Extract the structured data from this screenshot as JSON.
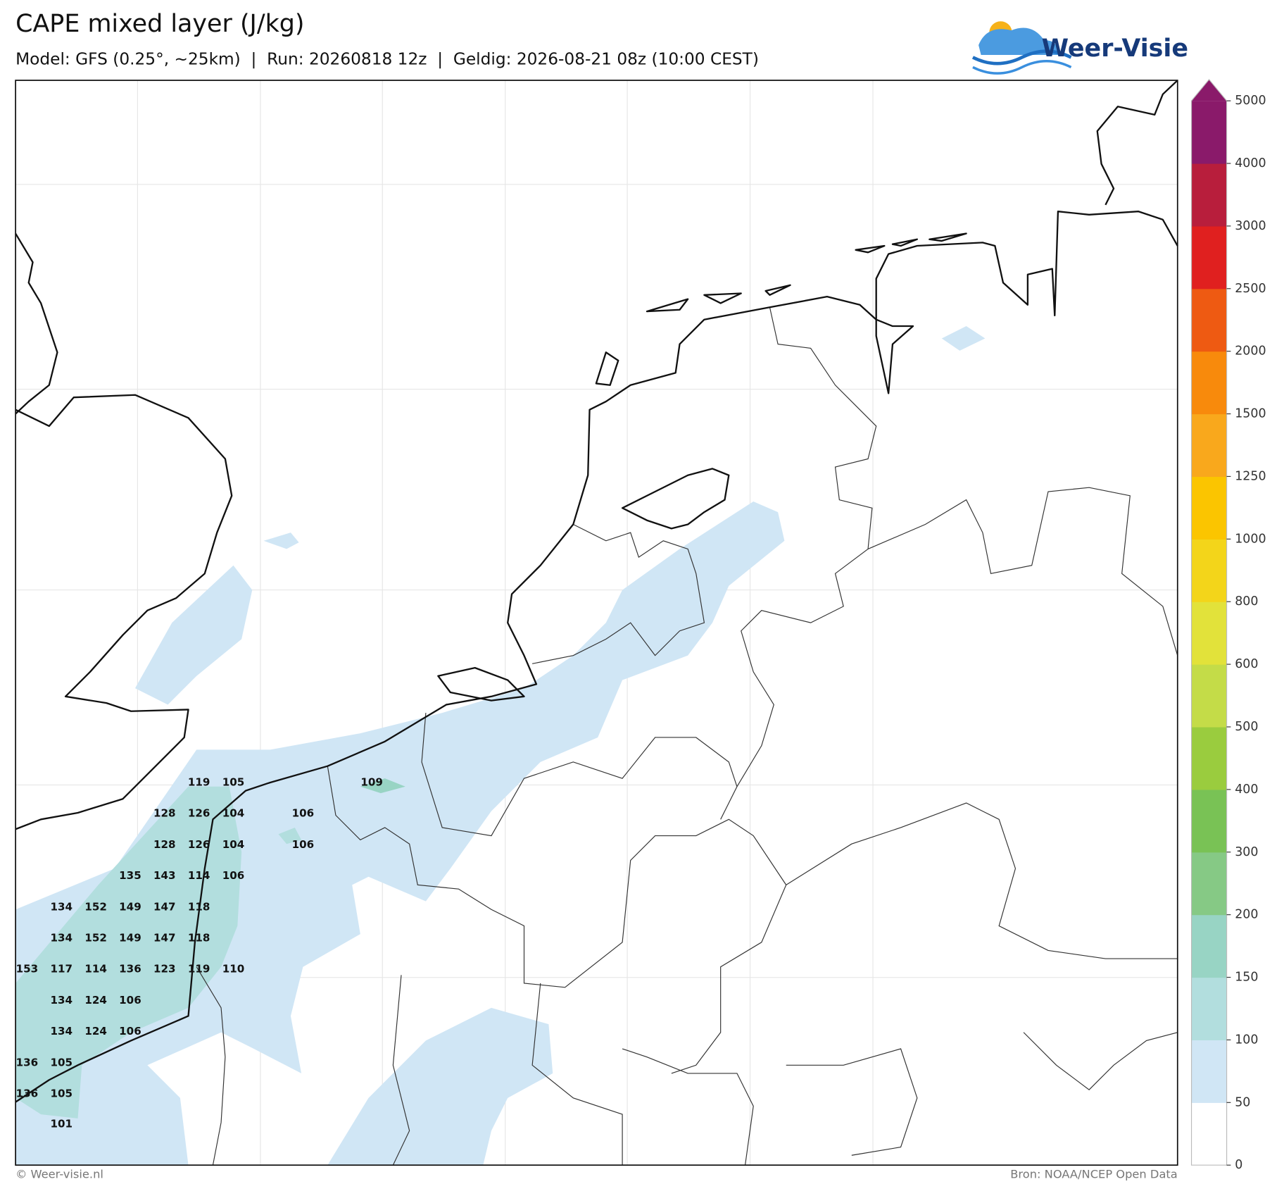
{
  "header": {
    "title": "CAPE mixed layer (J/kg)",
    "subtitle": "Model: GFS (0.25°, ~25km)  |  Run: 20260818 12z  |  Geldig: 2026-08-21 08z (10:00 CEST)"
  },
  "logo": "Weer-Visie",
  "colorbar": {
    "levels": [
      0,
      50,
      100,
      150,
      200,
      300,
      400,
      500,
      600,
      800,
      1000,
      1250,
      1500,
      2000,
      2500,
      3000,
      4000,
      5000
    ],
    "colors": [
      "#ffffff",
      "#d0e6f5",
      "#b2dede",
      "#98d4c4",
      "#86c985",
      "#79c255",
      "#9acc3e",
      "#c4dc48",
      "#e2e23a",
      "#f3d51a",
      "#fbc500",
      "#f9a81c",
      "#f88a0c",
      "#ee5a12",
      "#e0201f",
      "#b81e3c",
      "#8a1a6a"
    ]
  },
  "map_labels": [
    119,
    105,
    109,
    128,
    126,
    104,
    106,
    128,
    126,
    104,
    106,
    135,
    143,
    114,
    106,
    134,
    152,
    149,
    147,
    118,
    134,
    152,
    149,
    147,
    118,
    153,
    117,
    114,
    136,
    123,
    119,
    110,
    134,
    124,
    106,
    134,
    124,
    106,
    136,
    105,
    136,
    105,
    101
  ],
  "footer": {
    "copyright": "© Weer-visie.nl",
    "source": "Bron: NOAA/NCEP Open Data"
  }
}
